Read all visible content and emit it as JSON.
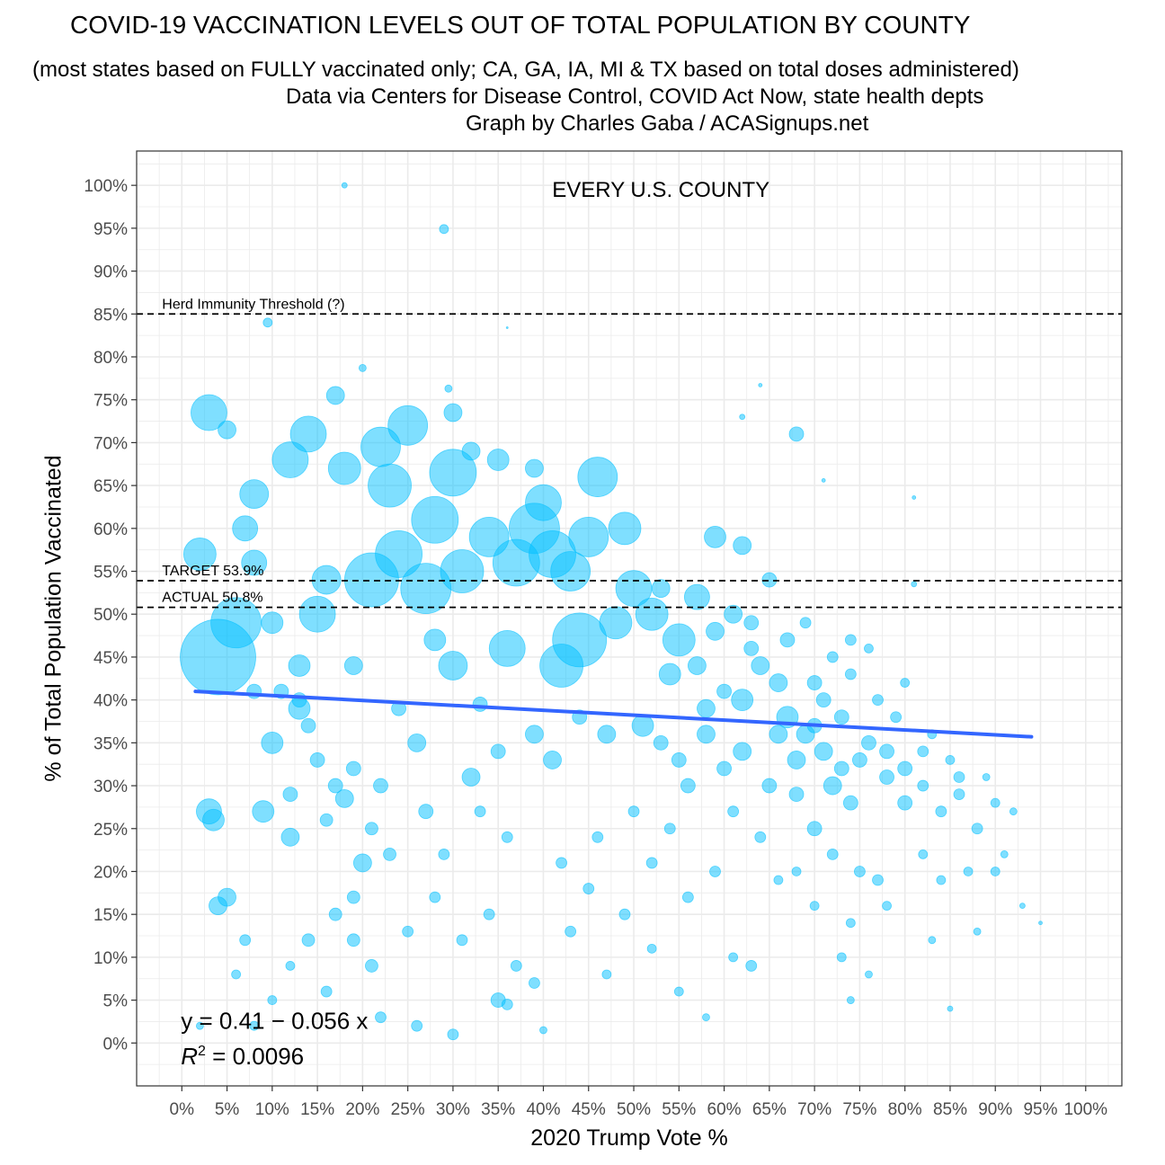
{
  "header": {
    "title": "COVID-19 VACCINATION LEVELS OUT OF TOTAL POPULATION BY COUNTY",
    "subtitle_line1": "(most states based on FULLY vaccinated only; CA, GA, IA, MI & TX based on total doses administered)",
    "subtitle_line2": "Data via Centers for Disease Control, COVID Act Now, state health depts",
    "subtitle_line3": "Graph by Charles Gaba / ACASignups.net"
  },
  "colors": {
    "points": "#00bfff",
    "trend": "#3366ff",
    "grid": "#ebebeb",
    "axis_text": "#4d4d4d"
  },
  "chart_data": {
    "type": "scatter",
    "title": "COVID-19 VACCINATION LEVELS OUT OF TOTAL POPULATION BY COUNTY",
    "panel_label": "EVERY U.S. COUNTY",
    "xlabel": "2020 Trump Vote %",
    "ylabel": "% of Total Population Vaccinated",
    "xlim": [
      -0.05,
      1.04
    ],
    "ylim": [
      -0.05,
      1.04
    ],
    "x_ticks": [
      0,
      0.05,
      0.1,
      0.15,
      0.2,
      0.25,
      0.3,
      0.35,
      0.4,
      0.45,
      0.5,
      0.55,
      0.6,
      0.65,
      0.7,
      0.75,
      0.8,
      0.85,
      0.9,
      0.95,
      1.0
    ],
    "x_tick_labels": [
      "0%",
      "5%",
      "10%",
      "15%",
      "20%",
      "25%",
      "30%",
      "35%",
      "40%",
      "45%",
      "50%",
      "55%",
      "60%",
      "65%",
      "70%",
      "75%",
      "80%",
      "85%",
      "90%",
      "95%",
      "100%"
    ],
    "y_ticks": [
      0,
      0.05,
      0.1,
      0.15,
      0.2,
      0.25,
      0.3,
      0.35,
      0.4,
      0.45,
      0.5,
      0.55,
      0.6,
      0.65,
      0.7,
      0.75,
      0.8,
      0.85,
      0.9,
      0.95,
      1.0
    ],
    "y_tick_labels": [
      "0%",
      "5%",
      "10%",
      "15%",
      "20%",
      "25%",
      "30%",
      "35%",
      "40%",
      "45%",
      "50%",
      "55%",
      "60%",
      "65%",
      "70%",
      "75%",
      "80%",
      "85%",
      "90%",
      "95%",
      "100%"
    ],
    "grid": true,
    "reference_lines": [
      {
        "y": 0.85,
        "label": "Herd Immunity Threshold (?)"
      },
      {
        "y": 0.539,
        "label": "TARGET 53.9%"
      },
      {
        "y": 0.508,
        "label": "ACTUAL 50.8%"
      }
    ],
    "trend_line": {
      "x": [
        0.015,
        0.94
      ],
      "y": [
        0.41,
        0.357
      ]
    },
    "equation": {
      "line1": "y = 0.41 − 0.056 x",
      "r2_prefix": "R",
      "r2_sup": "2",
      "r2_value": " = 0.0096"
    },
    "series": [
      {
        "points": [
          [
            0.04,
            0.45,
            42
          ],
          [
            0.06,
            0.49,
            28
          ],
          [
            0.03,
            0.735,
            20
          ],
          [
            0.02,
            0.57,
            18
          ],
          [
            0.08,
            0.64,
            16
          ],
          [
            0.14,
            0.71,
            20
          ],
          [
            0.12,
            0.68,
            20
          ],
          [
            0.18,
            0.67,
            18
          ],
          [
            0.22,
            0.695,
            22
          ],
          [
            0.25,
            0.72,
            22
          ],
          [
            0.23,
            0.65,
            24
          ],
          [
            0.28,
            0.61,
            26
          ],
          [
            0.3,
            0.665,
            26
          ],
          [
            0.21,
            0.54,
            30
          ],
          [
            0.24,
            0.57,
            26
          ],
          [
            0.27,
            0.53,
            28
          ],
          [
            0.31,
            0.55,
            24
          ],
          [
            0.34,
            0.59,
            22
          ],
          [
            0.37,
            0.56,
            26
          ],
          [
            0.39,
            0.6,
            28
          ],
          [
            0.41,
            0.57,
            26
          ],
          [
            0.43,
            0.55,
            22
          ],
          [
            0.4,
            0.63,
            20
          ],
          [
            0.45,
            0.59,
            22
          ],
          [
            0.44,
            0.47,
            30
          ],
          [
            0.42,
            0.44,
            24
          ],
          [
            0.46,
            0.66,
            22
          ],
          [
            0.36,
            0.46,
            20
          ],
          [
            0.49,
            0.6,
            18
          ],
          [
            0.5,
            0.53,
            20
          ],
          [
            0.52,
            0.5,
            18
          ],
          [
            0.55,
            0.47,
            18
          ],
          [
            0.57,
            0.52,
            14
          ],
          [
            0.48,
            0.49,
            18
          ],
          [
            0.3,
            0.44,
            16
          ],
          [
            0.15,
            0.5,
            20
          ],
          [
            0.16,
            0.54,
            16
          ],
          [
            0.08,
            0.56,
            14
          ],
          [
            0.07,
            0.6,
            14
          ],
          [
            0.1,
            0.49,
            12
          ],
          [
            0.05,
            0.715,
            10
          ],
          [
            0.13,
            0.44,
            12
          ],
          [
            0.03,
            0.27,
            14
          ],
          [
            0.035,
            0.26,
            12
          ],
          [
            0.1,
            0.35,
            12
          ],
          [
            0.09,
            0.27,
            12
          ],
          [
            0.13,
            0.39,
            12
          ],
          [
            0.2,
            0.21,
            10
          ],
          [
            0.17,
            0.755,
            10
          ],
          [
            0.3,
            0.735,
            10
          ],
          [
            0.32,
            0.69,
            10
          ],
          [
            0.35,
            0.68,
            12
          ],
          [
            0.39,
            0.67,
            10
          ],
          [
            0.53,
            0.53,
            10
          ],
          [
            0.59,
            0.59,
            12
          ],
          [
            0.62,
            0.58,
            10
          ],
          [
            0.65,
            0.54,
            8
          ],
          [
            0.68,
            0.71,
            8
          ],
          [
            0.19,
            0.44,
            10
          ],
          [
            0.08,
            0.41,
            8
          ],
          [
            0.04,
            0.16,
            10
          ],
          [
            0.12,
            0.24,
            10
          ],
          [
            0.05,
            0.17,
            10
          ],
          [
            0.18,
            0.285,
            10
          ],
          [
            0.33,
            0.395,
            8
          ],
          [
            0.58,
            0.36,
            10
          ],
          [
            0.56,
            0.3,
            8
          ],
          [
            0.6,
            0.32,
            8
          ],
          [
            0.62,
            0.34,
            10
          ],
          [
            0.65,
            0.3,
            8
          ],
          [
            0.68,
            0.33,
            10
          ],
          [
            0.7,
            0.37,
            8
          ],
          [
            0.72,
            0.3,
            10
          ],
          [
            0.74,
            0.28,
            8
          ],
          [
            0.66,
            0.42,
            10
          ],
          [
            0.64,
            0.44,
            10
          ],
          [
            0.63,
            0.46,
            8
          ],
          [
            0.7,
            0.42,
            8
          ],
          [
            0.75,
            0.33,
            8
          ],
          [
            0.78,
            0.31,
            8
          ],
          [
            0.8,
            0.28,
            8
          ],
          [
            0.67,
            0.38,
            12
          ],
          [
            0.69,
            0.36,
            10
          ],
          [
            0.71,
            0.34,
            10
          ],
          [
            0.73,
            0.32,
            8
          ],
          [
            0.76,
            0.35,
            8
          ],
          [
            0.82,
            0.3,
            6
          ],
          [
            0.84,
            0.27,
            6
          ],
          [
            0.86,
            0.29,
            6
          ],
          [
            0.88,
            0.25,
            6
          ],
          [
            0.9,
            0.28,
            5
          ],
          [
            0.92,
            0.27,
            4
          ],
          [
            0.85,
            0.33,
            5
          ],
          [
            0.83,
            0.36,
            5
          ],
          [
            0.79,
            0.38,
            6
          ],
          [
            0.77,
            0.4,
            6
          ],
          [
            0.74,
            0.43,
            6
          ],
          [
            0.76,
            0.46,
            5
          ],
          [
            0.8,
            0.42,
            5
          ],
          [
            0.89,
            0.31,
            4
          ],
          [
            0.91,
            0.22,
            4
          ],
          [
            0.93,
            0.16,
            3
          ],
          [
            0.95,
            0.14,
            2
          ],
          [
            0.81,
            0.535,
            3
          ],
          [
            0.29,
            0.949,
            5
          ],
          [
            0.18,
            1.0,
            3
          ],
          [
            0.095,
            0.84,
            5
          ],
          [
            0.2,
            0.787,
            4
          ],
          [
            0.295,
            0.763,
            4
          ],
          [
            0.62,
            0.73,
            3
          ],
          [
            0.64,
            0.767,
            2
          ],
          [
            0.71,
            0.656,
            2
          ],
          [
            0.81,
            0.636,
            2
          ],
          [
            0.36,
            0.834,
            1
          ],
          [
            0.28,
            0.47,
            12
          ],
          [
            0.24,
            0.39,
            8
          ],
          [
            0.26,
            0.35,
            10
          ],
          [
            0.22,
            0.3,
            8
          ],
          [
            0.27,
            0.27,
            8
          ],
          [
            0.32,
            0.31,
            10
          ],
          [
            0.35,
            0.34,
            8
          ],
          [
            0.39,
            0.36,
            10
          ],
          [
            0.41,
            0.33,
            10
          ],
          [
            0.44,
            0.38,
            8
          ],
          [
            0.47,
            0.36,
            10
          ],
          [
            0.51,
            0.37,
            12
          ],
          [
            0.53,
            0.35,
            8
          ],
          [
            0.55,
            0.33,
            8
          ],
          [
            0.54,
            0.43,
            12
          ],
          [
            0.57,
            0.44,
            10
          ],
          [
            0.59,
            0.48,
            10
          ],
          [
            0.61,
            0.5,
            10
          ],
          [
            0.63,
            0.49,
            8
          ],
          [
            0.6,
            0.41,
            8
          ],
          [
            0.62,
            0.4,
            12
          ],
          [
            0.58,
            0.39,
            10
          ],
          [
            0.66,
            0.36,
            10
          ],
          [
            0.68,
            0.29,
            8
          ],
          [
            0.7,
            0.25,
            8
          ],
          [
            0.72,
            0.22,
            6
          ],
          [
            0.75,
            0.2,
            6
          ],
          [
            0.77,
            0.19,
            6
          ],
          [
            0.74,
            0.14,
            5
          ],
          [
            0.78,
            0.16,
            5
          ],
          [
            0.82,
            0.22,
            5
          ],
          [
            0.84,
            0.19,
            5
          ],
          [
            0.87,
            0.2,
            5
          ],
          [
            0.9,
            0.2,
            5
          ],
          [
            0.83,
            0.12,
            4
          ],
          [
            0.88,
            0.13,
            4
          ],
          [
            0.7,
            0.16,
            5
          ],
          [
            0.68,
            0.2,
            5
          ],
          [
            0.73,
            0.1,
            5
          ],
          [
            0.76,
            0.08,
            4
          ],
          [
            0.74,
            0.05,
            4
          ],
          [
            0.85,
            0.04,
            3
          ],
          [
            0.4,
            0.015,
            4
          ],
          [
            0.3,
            0.01,
            6
          ],
          [
            0.35,
            0.05,
            8
          ],
          [
            0.36,
            0.045,
            6
          ],
          [
            0.26,
            0.02,
            6
          ],
          [
            0.13,
            0.4,
            8
          ],
          [
            0.11,
            0.41,
            8
          ],
          [
            0.14,
            0.37,
            8
          ],
          [
            0.15,
            0.33,
            8
          ],
          [
            0.17,
            0.3,
            8
          ],
          [
            0.19,
            0.32,
            8
          ],
          [
            0.12,
            0.29,
            8
          ],
          [
            0.16,
            0.26,
            7
          ],
          [
            0.21,
            0.25,
            7
          ],
          [
            0.23,
            0.22,
            7
          ],
          [
            0.19,
            0.17,
            7
          ],
          [
            0.17,
            0.15,
            7
          ],
          [
            0.14,
            0.12,
            7
          ],
          [
            0.19,
            0.12,
            7
          ],
          [
            0.21,
            0.09,
            7
          ],
          [
            0.16,
            0.06,
            6
          ],
          [
            0.22,
            0.03,
            6
          ],
          [
            0.28,
            0.17,
            6
          ],
          [
            0.31,
            0.12,
            6
          ],
          [
            0.34,
            0.15,
            6
          ],
          [
            0.37,
            0.09,
            6
          ],
          [
            0.39,
            0.07,
            6
          ],
          [
            0.43,
            0.13,
            6
          ],
          [
            0.45,
            0.18,
            6
          ],
          [
            0.49,
            0.15,
            6
          ],
          [
            0.47,
            0.08,
            5
          ],
          [
            0.52,
            0.11,
            5
          ],
          [
            0.55,
            0.06,
            5
          ],
          [
            0.58,
            0.03,
            4
          ],
          [
            0.61,
            0.1,
            5
          ],
          [
            0.63,
            0.09,
            6
          ],
          [
            0.07,
            0.12,
            6
          ],
          [
            0.06,
            0.08,
            5
          ],
          [
            0.08,
            0.02,
            5
          ],
          [
            0.1,
            0.05,
            5
          ],
          [
            0.12,
            0.09,
            5
          ],
          [
            0.02,
            0.02,
            4
          ],
          [
            0.25,
            0.13,
            6
          ],
          [
            0.29,
            0.22,
            6
          ],
          [
            0.33,
            0.27,
            6
          ],
          [
            0.36,
            0.24,
            6
          ],
          [
            0.42,
            0.21,
            6
          ],
          [
            0.46,
            0.24,
            6
          ],
          [
            0.5,
            0.27,
            6
          ],
          [
            0.52,
            0.21,
            6
          ],
          [
            0.54,
            0.25,
            6
          ],
          [
            0.56,
            0.17,
            6
          ],
          [
            0.59,
            0.2,
            6
          ],
          [
            0.61,
            0.27,
            6
          ],
          [
            0.64,
            0.24,
            6
          ],
          [
            0.66,
            0.19,
            5
          ],
          [
            0.71,
            0.4,
            8
          ],
          [
            0.73,
            0.38,
            8
          ],
          [
            0.78,
            0.34,
            8
          ],
          [
            0.8,
            0.32,
            8
          ],
          [
            0.82,
            0.34,
            6
          ],
          [
            0.86,
            0.31,
            6
          ],
          [
            0.72,
            0.45,
            6
          ],
          [
            0.74,
            0.47,
            6
          ],
          [
            0.69,
            0.49,
            6
          ],
          [
            0.67,
            0.47,
            8
          ]
        ]
      }
    ]
  }
}
